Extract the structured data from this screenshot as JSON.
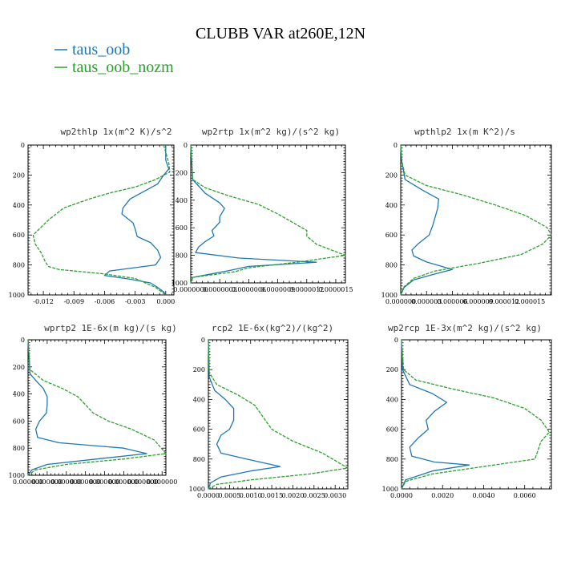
{
  "page": {
    "title": "CLUBB VAR at260E,12N"
  },
  "colors": {
    "taus_oob": "#1f77b4",
    "taus_oob_nozm": "#2ca02c"
  },
  "legend": [
    {
      "name": "taus_oob",
      "color": "#1f77b4"
    },
    {
      "name": "taus_oob_nozm",
      "color": "#2ca02c"
    }
  ],
  "chart_data": [
    {
      "type": "line",
      "title": "wp2thlp  1x(m^2 K)/s^2",
      "xlim": [
        -0.0135,
        0.0008
      ],
      "ylim": [
        1000,
        0
      ],
      "xticks": [
        -0.012,
        -0.009,
        -0.006,
        -0.003,
        0.0
      ],
      "xtick_labels": [
        "-0.012",
        "-0.009",
        "-0.006",
        "-0.003",
        "0.000"
      ],
      "yticks": [
        0,
        200,
        400,
        600,
        800,
        1000
      ],
      "ytick_labels": [
        "0",
        "200",
        "400",
        "600",
        "800",
        "1000"
      ],
      "series": [
        {
          "name": "taus_oob",
          "color": "#1f77b4",
          "dashed": false,
          "x": [
            0,
            0,
            0.0003,
            -0.0002,
            -0.0008,
            -0.0035,
            -0.0042,
            -0.0043,
            -0.0032,
            -0.003,
            -0.0028,
            -0.0015,
            -0.0008,
            -0.0005,
            -0.001,
            -0.0055,
            -0.006,
            -0.0035,
            -0.0015,
            -0.0008,
            -0.0002,
            0
          ],
          "y": [
            0,
            100,
            160,
            200,
            260,
            360,
            420,
            460,
            520,
            560,
            610,
            650,
            700,
            750,
            800,
            840,
            870,
            895,
            920,
            950,
            980,
            1000
          ]
        },
        {
          "name": "taus_oob_nozm",
          "color": "#2ca02c",
          "dashed": true,
          "x": [
            -0.0002,
            0.0003,
            0.0004,
            -0.001,
            -0.003,
            -0.0055,
            -0.0075,
            -0.01,
            -0.0115,
            -0.013,
            -0.0128,
            -0.0122,
            -0.0118,
            -0.0115,
            -0.0105,
            -0.006,
            -0.003,
            -0.001,
            0
          ],
          "y": [
            0,
            120,
            180,
            230,
            280,
            320,
            360,
            420,
            500,
            600,
            660,
            720,
            780,
            810,
            830,
            860,
            890,
            950,
            1000
          ]
        }
      ]
    },
    {
      "type": "line",
      "title": "wp2rtp  1x(m^2 kg)/(s^2 kg)",
      "xlim": [
        0,
        1.6e-06
      ],
      "ylim": [
        1000,
        0
      ],
      "xticks": [
        0,
        3e-07,
        6e-07,
        9e-07,
        1.2e-06,
        1.5e-06
      ],
      "xtick_labels": [
        "0.0000000",
        "0.0000003",
        "0.0000006",
        "0.0000009",
        "0.0000012",
        "0.0000015"
      ],
      "yticks": [
        0,
        200,
        400,
        600,
        800,
        1000
      ],
      "ytick_labels": [
        "0",
        "200",
        "400",
        "600",
        "800",
        "1000"
      ],
      "series": [
        {
          "name": "taus_oob",
          "color": "#1f77b4",
          "dashed": false,
          "x": [
            0,
            2e-08,
            1.5e-07,
            3e-07,
            3.5e-07,
            3e-07,
            3e-07,
            2.6e-07,
            2.2e-07,
            2.4e-07,
            1.5e-07,
            8e-08,
            5e-08,
            5e-07,
            1.3e-06,
            6e-07,
            4e-07,
            2e-08,
            0
          ],
          "y": [
            0,
            250,
            350,
            420,
            460,
            520,
            560,
            590,
            620,
            660,
            700,
            740,
            780,
            820,
            850,
            880,
            910,
            960,
            1000
          ]
        },
        {
          "name": "taus_oob_nozm",
          "color": "#2ca02c",
          "dashed": true,
          "x": [
            0,
            2e-08,
            1.5e-07,
            4e-07,
            7e-07,
            9e-07,
            1.05e-06,
            1.2e-06,
            1.2e-06,
            1.3e-06,
            1.6e-06,
            1.1e-06,
            6e-07,
            4.5e-07,
            2e-08,
            0
          ],
          "y": [
            0,
            250,
            310,
            370,
            430,
            500,
            560,
            620,
            660,
            720,
            800,
            850,
            890,
            920,
            960,
            1000
          ]
        }
      ]
    },
    {
      "type": "line",
      "title": "wpthlp2  1x(m K^2)/s",
      "xlim": [
        0,
        1.75e-05
      ],
      "ylim": [
        1000,
        0
      ],
      "xticks": [
        0,
        3e-06,
        6e-06,
        9e-06,
        1.2e-05,
        1.5e-05
      ],
      "xtick_labels": [
        "0.000000",
        "0.000003",
        "0.000006",
        "0.000009",
        "0.000012",
        "0.000015"
      ],
      "yticks": [
        0,
        200,
        400,
        600,
        800,
        1000
      ],
      "ytick_labels": [
        "0",
        "200",
        "400",
        "600",
        "800",
        "1000"
      ],
      "series": [
        {
          "name": "taus_oob",
          "color": "#1f77b4",
          "dashed": false,
          "x": [
            0,
            1e-07,
            5e-07,
            2.5e-06,
            4.4e-06,
            4.3e-06,
            4e-06,
            3.7e-06,
            3.3e-06,
            2e-06,
            1.3e-06,
            1.5e-06,
            3e-06,
            6e-06,
            4e-06,
            1.5e-06,
            4e-07,
            0
          ],
          "y": [
            0,
            100,
            230,
            300,
            360,
            420,
            480,
            540,
            600,
            660,
            700,
            740,
            780,
            830,
            860,
            900,
            950,
            1000
          ]
        },
        {
          "name": "taus_oob_nozm",
          "color": "#2ca02c",
          "dashed": true,
          "x": [
            0,
            1e-07,
            5e-07,
            3e-06,
            7e-06,
            1.1e-05,
            1.45e-05,
            1.7e-05,
            1.75e-05,
            1.65e-05,
            1.4e-05,
            9e-06,
            4e-06,
            1.5e-06,
            3e-07,
            0
          ],
          "y": [
            0,
            100,
            200,
            270,
            330,
            400,
            470,
            550,
            600,
            660,
            730,
            790,
            840,
            890,
            950,
            1000
          ]
        }
      ]
    },
    {
      "type": "line",
      "title": "wprtp2  1E-6x(m kg)/(s kg)",
      "xlim": [
        0,
        3.6e-06
      ],
      "ylim": [
        1000,
        0
      ],
      "xticks": [
        0,
        5e-07,
        1e-06,
        1.5e-06,
        2e-06,
        2.5e-06,
        3e-06,
        3.5e-06
      ],
      "xtick_labels": [
        "0.000000",
        "0.000000",
        "0.000000",
        "0.000000",
        "0.000000",
        "0.000000",
        "0.000000",
        "0.000000"
      ],
      "yticks": [
        0,
        200,
        400,
        600,
        800,
        1000
      ],
      "ytick_labels": [
        "0",
        "200",
        "400",
        "600",
        "800",
        "1000"
      ],
      "series": [
        {
          "name": "taus_oob",
          "color": "#1f77b4",
          "dashed": false,
          "x": [
            0,
            5e-08,
            2e-07,
            4e-07,
            5e-07,
            5e-07,
            4.8e-07,
            3e-07,
            2e-07,
            2.5e-07,
            8e-07,
            2.5e-06,
            3.1e-06,
            1.8e-06,
            5e-07,
            1e-07,
            0
          ],
          "y": [
            0,
            250,
            300,
            360,
            420,
            480,
            540,
            600,
            660,
            720,
            760,
            800,
            840,
            880,
            920,
            960,
            1000
          ]
        },
        {
          "name": "taus_oob_nozm",
          "color": "#2ca02c",
          "dashed": true,
          "x": [
            0,
            5e-08,
            4e-07,
            9e-07,
            1.3e-06,
            1.5e-06,
            1.7e-06,
            2.1e-06,
            2.7e-06,
            3.3e-06,
            3.6e-06,
            2.5e-06,
            1e-06,
            2e-07,
            0
          ],
          "y": [
            0,
            220,
            300,
            360,
            420,
            480,
            540,
            600,
            660,
            740,
            840,
            880,
            920,
            960,
            1000
          ]
        }
      ]
    },
    {
      "type": "line",
      "title": "rcp2  1E-6x(kg^2)/(kg^2)",
      "xlim": [
        0,
        0.0033
      ],
      "ylim": [
        1000,
        0
      ],
      "xticks": [
        0,
        0.0005,
        0.001,
        0.0015,
        0.002,
        0.0025,
        0.003
      ],
      "xtick_labels": [
        "0.0000",
        "0.0005",
        "0.0010",
        "0.0015",
        "0.0020",
        "0.0025",
        "0.0030"
      ],
      "yticks": [
        0,
        200,
        400,
        600,
        800,
        1000
      ],
      "ytick_labels": [
        "0",
        "200",
        "400",
        "600",
        "800",
        "1000"
      ],
      "series": [
        {
          "name": "taus_oob",
          "color": "#1f77b4",
          "dashed": false,
          "x": [
            0,
            2e-05,
            0.00015,
            0.0004,
            0.0006,
            0.0006,
            0.0005,
            0.0003,
            0.0002,
            0.0003,
            0.0009,
            0.0017,
            0.001,
            0.0003,
            5e-05,
            0
          ],
          "y": [
            0,
            250,
            340,
            400,
            460,
            540,
            600,
            640,
            700,
            760,
            800,
            850,
            880,
            920,
            960,
            1000
          ]
        },
        {
          "name": "taus_oob_nozm",
          "color": "#2ca02c",
          "dashed": true,
          "x": [
            0,
            2e-05,
            0.0002,
            0.0007,
            0.0011,
            0.0013,
            0.0015,
            0.002,
            0.0027,
            0.0033,
            0.0024,
            0.001,
            0.0002,
            0
          ],
          "y": [
            0,
            220,
            300,
            370,
            440,
            520,
            600,
            680,
            760,
            860,
            900,
            940,
            970,
            1000
          ]
        }
      ]
    },
    {
      "type": "line",
      "title": "wp2rcp  1E-3x(m^2 kg)/(s^2 kg)",
      "xlim": [
        0,
        0.0073
      ],
      "ylim": [
        1000,
        0
      ],
      "xticks": [
        0,
        0.002,
        0.004,
        0.006
      ],
      "xtick_labels": [
        "0.0000",
        "0.0020",
        "0.0040",
        "0.0060"
      ],
      "yticks": [
        0,
        200,
        400,
        600,
        800,
        1000
      ],
      "ytick_labels": [
        "0",
        "200",
        "400",
        "600",
        "800",
        "1000"
      ],
      "series": [
        {
          "name": "taus_oob",
          "color": "#1f77b4",
          "dashed": false,
          "x": [
            0,
            5e-05,
            0.0004,
            0.0015,
            0.0022,
            0.0016,
            0.0012,
            0.0013,
            0.0008,
            0.0004,
            0.0005,
            0.0016,
            0.0033,
            0.0015,
            0.0002,
            0
          ],
          "y": [
            0,
            200,
            300,
            360,
            420,
            480,
            540,
            600,
            660,
            720,
            780,
            820,
            840,
            880,
            940,
            1000
          ]
        },
        {
          "name": "taus_oob_nozm",
          "color": "#2ca02c",
          "dashed": true,
          "x": [
            0,
            0.0001,
            0.0007,
            0.0025,
            0.0045,
            0.006,
            0.0068,
            0.0072,
            0.0068,
            0.0067,
            0.0065,
            0.004,
            0.0015,
            0.0002,
            0
          ],
          "y": [
            0,
            200,
            270,
            330,
            390,
            460,
            540,
            620,
            680,
            720,
            800,
            850,
            900,
            950,
            1000
          ]
        }
      ]
    }
  ]
}
